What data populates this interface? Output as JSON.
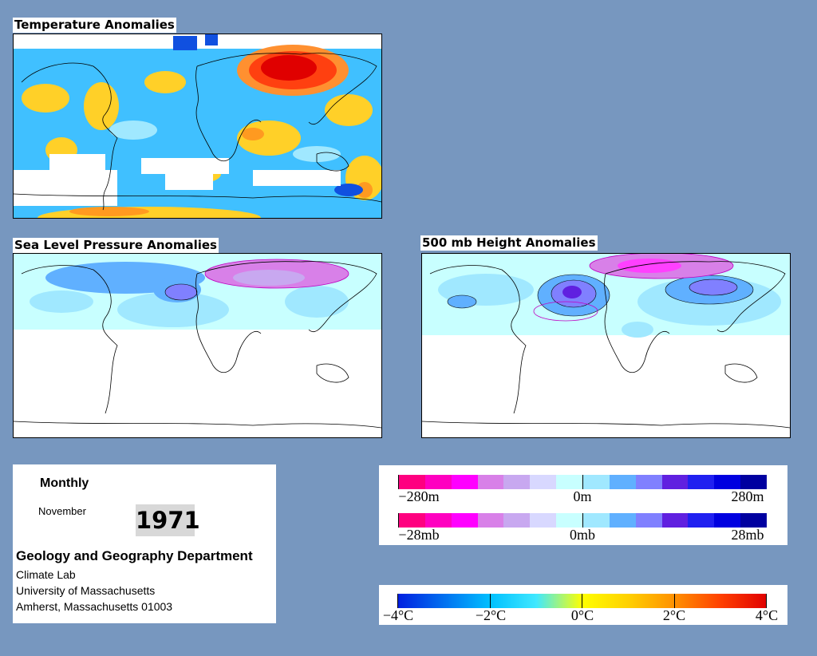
{
  "panels": {
    "temperature": {
      "title": "Temperature Anomalies"
    },
    "slp": {
      "title": "Sea Level Pressure Anomalies"
    },
    "height500": {
      "title": "500 mb Height Anomalies"
    }
  },
  "info": {
    "period": "Monthly",
    "month": "November",
    "year": "1971",
    "department": "Geology and Geography Department",
    "lab": "Climate Lab",
    "university": "University of Massachusetts",
    "address": "Amherst, Massachusetts 01003"
  },
  "height_scale": {
    "labels": [
      "−280m",
      "0m",
      "280m"
    ],
    "colors": [
      "#ff0080",
      "#ff00c0",
      "#ff00ff",
      "#d880e8",
      "#c8a8f0",
      "#d8d8ff",
      "#c8ffff",
      "#a0e8ff",
      "#60b0ff",
      "#8080ff",
      "#6020e0",
      "#2020f0",
      "#0000e0",
      "#0000a0"
    ]
  },
  "pressure_scale": {
    "labels": [
      "−28mb",
      "0mb",
      "28mb"
    ],
    "colors": [
      "#ff0080",
      "#ff00c0",
      "#ff00ff",
      "#d880e8",
      "#c8a8f0",
      "#d8d8ff",
      "#c8ffff",
      "#a0e8ff",
      "#60b0ff",
      "#8080ff",
      "#6020e0",
      "#2020f0",
      "#0000e0",
      "#0000a0"
    ]
  },
  "temp_scale": {
    "labels": [
      "−4°C",
      "−2°C",
      "0°C",
      "2°C",
      "4°C"
    ],
    "gradient": [
      "#0020e0",
      "#0070f0",
      "#00c0ff",
      "#40e8ff",
      "#ffff00",
      "#ffd000",
      "#ff9000",
      "#ff4000",
      "#e00000"
    ]
  }
}
